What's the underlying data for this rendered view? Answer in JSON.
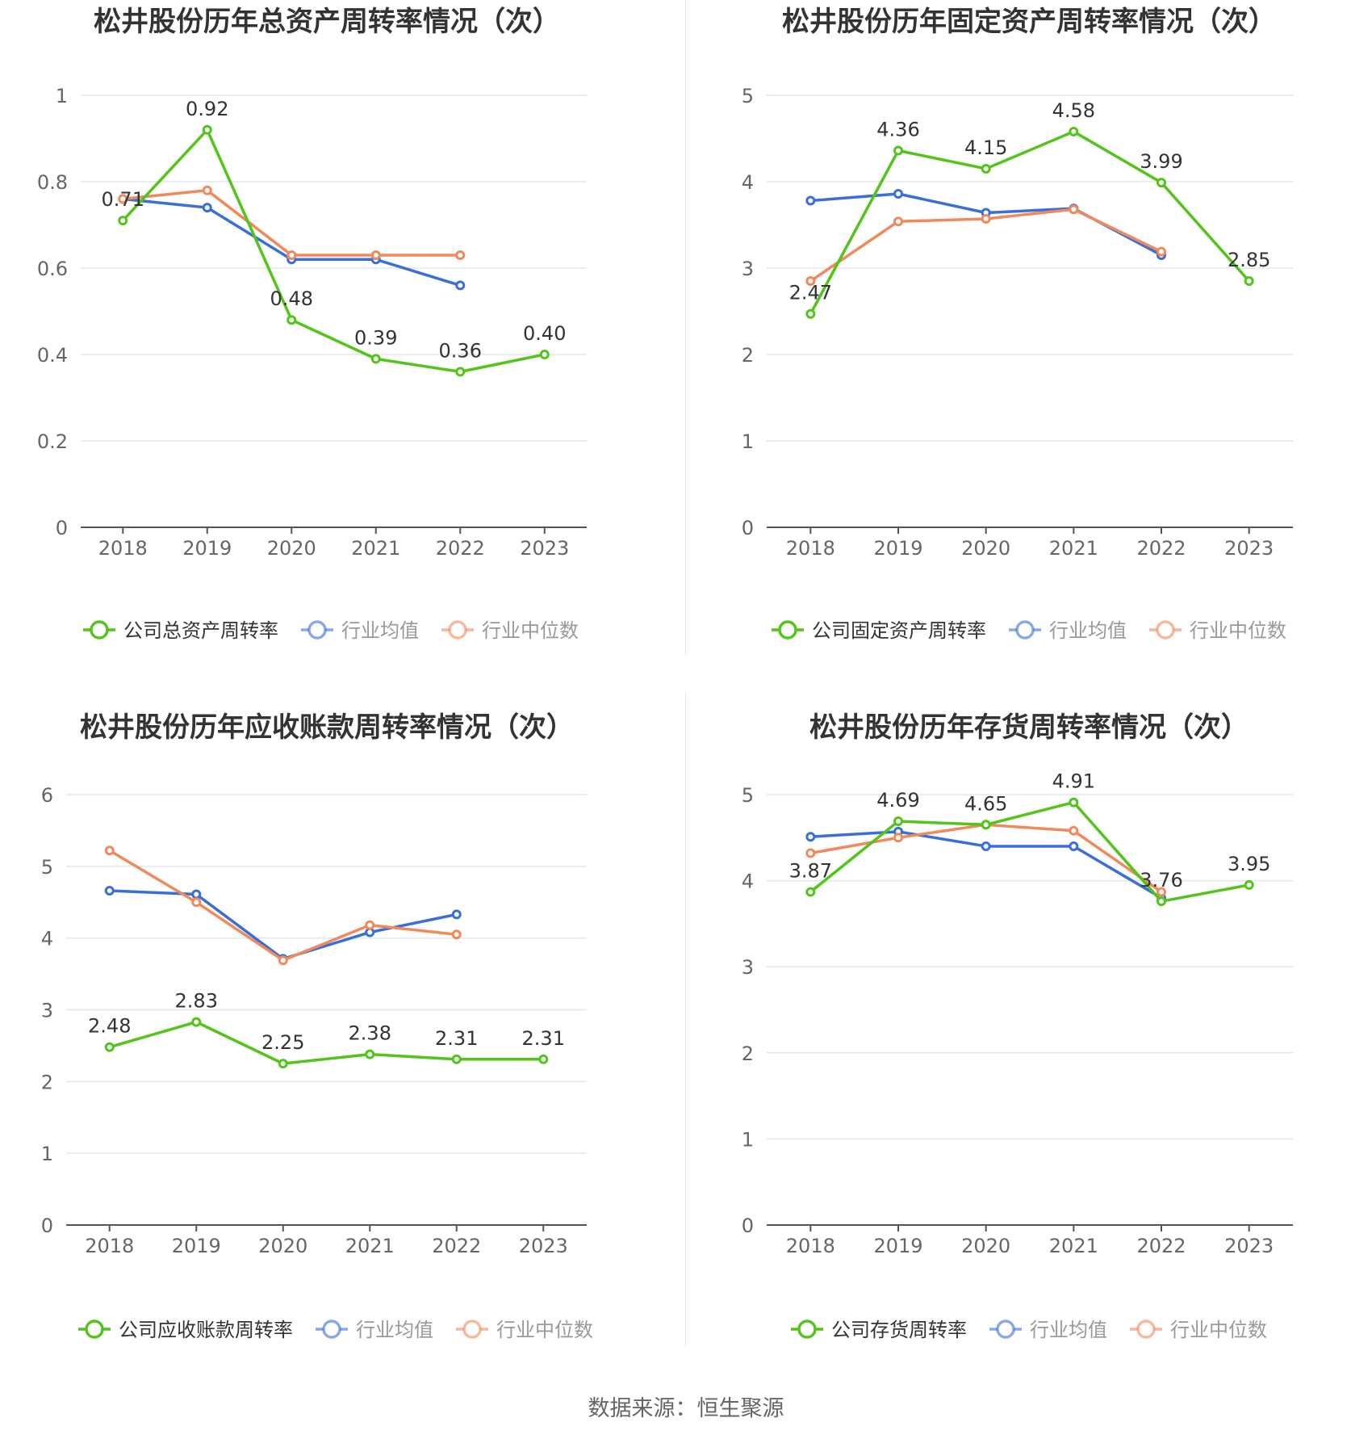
{
  "chart_data": [
    {
      "type": "line",
      "title": "松井股份历年总资产周转率情况（次）",
      "categories": [
        "2018",
        "2019",
        "2020",
        "2021",
        "2022",
        "2023"
      ],
      "ylim": [
        0,
        1
      ],
      "yticks": [
        "0",
        "0.2",
        "0.4",
        "0.6",
        "0.8",
        "1"
      ],
      "grid": true,
      "legend_position": "bottom",
      "series": [
        {
          "name": "公司总资产周转率",
          "color": "#52c41a",
          "values": [
            0.71,
            0.92,
            0.48,
            0.39,
            0.36,
            0.4
          ],
          "labels": [
            "0.71",
            "0.92",
            "0.48",
            "0.39",
            "0.36",
            "0.40"
          ]
        },
        {
          "name": "行业均值",
          "color": "#3b6fd8",
          "values": [
            0.76,
            0.74,
            0.62,
            0.62,
            0.56,
            null
          ]
        },
        {
          "name": "行业中位数",
          "color": "#f08a5d",
          "values": [
            0.76,
            0.78,
            0.63,
            0.63,
            0.63,
            null
          ]
        }
      ]
    },
    {
      "type": "line",
      "title": "松井股份历年固定资产周转率情况（次）",
      "categories": [
        "2018",
        "2019",
        "2020",
        "2021",
        "2022",
        "2023"
      ],
      "ylim": [
        0,
        5
      ],
      "yticks": [
        "0",
        "1",
        "2",
        "3",
        "4",
        "5"
      ],
      "grid": true,
      "legend_position": "bottom",
      "series": [
        {
          "name": "公司固定资产周转率",
          "color": "#52c41a",
          "values": [
            2.47,
            4.36,
            4.15,
            4.58,
            3.99,
            2.85
          ],
          "labels": [
            "2.47",
            "4.36",
            "4.15",
            "4.58",
            "3.99",
            "2.85"
          ]
        },
        {
          "name": "行业均值",
          "color": "#3b6fd8",
          "values": [
            3.78,
            3.86,
            3.64,
            3.69,
            3.15,
            null
          ]
        },
        {
          "name": "行业中位数",
          "color": "#f08a5d",
          "values": [
            2.85,
            3.54,
            3.57,
            3.68,
            3.19,
            null
          ]
        }
      ]
    },
    {
      "type": "line",
      "title": "松井股份历年应收账款周转率情况（次）",
      "categories": [
        "2018",
        "2019",
        "2020",
        "2021",
        "2022",
        "2023"
      ],
      "ylim": [
        0,
        6
      ],
      "yticks": [
        "0",
        "1",
        "2",
        "3",
        "4",
        "5",
        "6"
      ],
      "grid": true,
      "legend_position": "bottom",
      "series": [
        {
          "name": "公司应收账款周转率",
          "color": "#52c41a",
          "values": [
            2.48,
            2.83,
            2.25,
            2.38,
            2.31,
            2.31
          ],
          "labels": [
            "2.48",
            "2.83",
            "2.25",
            "2.38",
            "2.31",
            "2.31"
          ]
        },
        {
          "name": "行业均值",
          "color": "#3b6fd8",
          "values": [
            4.66,
            4.61,
            3.71,
            4.08,
            4.33,
            null
          ]
        },
        {
          "name": "行业中位数",
          "color": "#f08a5d",
          "values": [
            5.22,
            4.5,
            3.69,
            4.18,
            4.05,
            null
          ]
        }
      ]
    },
    {
      "type": "line",
      "title": "松井股份历年存货周转率情况（次）",
      "categories": [
        "2018",
        "2019",
        "2020",
        "2021",
        "2022",
        "2023"
      ],
      "ylim": [
        0,
        5
      ],
      "yticks": [
        "0",
        "1",
        "2",
        "3",
        "4",
        "5"
      ],
      "grid": true,
      "legend_position": "bottom",
      "series": [
        {
          "name": "公司存货周转率",
          "color": "#52c41a",
          "values": [
            3.87,
            4.69,
            4.65,
            4.91,
            3.76,
            3.95
          ],
          "labels": [
            "3.87",
            "4.69",
            "4.65",
            "4.91",
            "3.76",
            "3.95"
          ]
        },
        {
          "name": "行业均值",
          "color": "#3b6fd8",
          "values": [
            4.51,
            4.57,
            4.4,
            4.4,
            3.8,
            null
          ]
        },
        {
          "name": "行业中位数",
          "color": "#f08a5d",
          "values": [
            4.32,
            4.5,
            4.65,
            4.58,
            3.87,
            null
          ]
        }
      ]
    }
  ],
  "footer": {
    "source": "数据来源：恒生聚源"
  }
}
